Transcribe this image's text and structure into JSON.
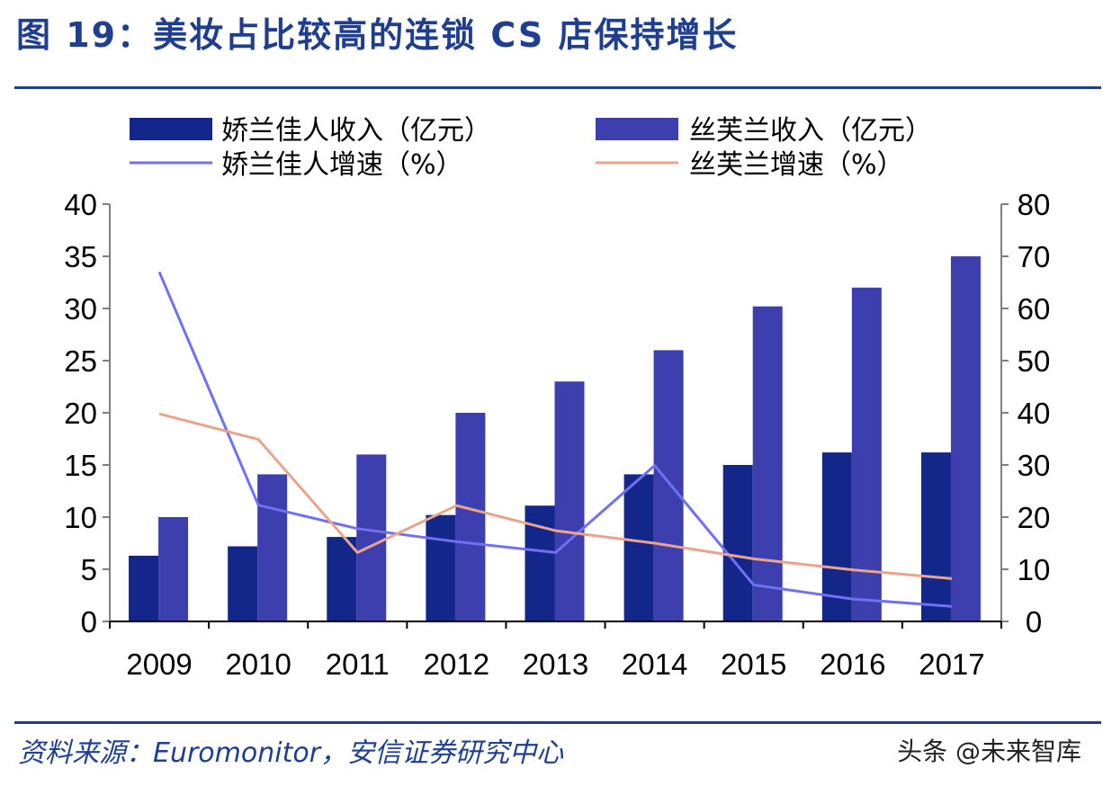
{
  "title": "图 19：美妆占比较高的连锁 CS 店保持增长",
  "source": "资料来源：Euromonitor，安信证券研究中心",
  "watermark": "头条 @未来智库",
  "colors": {
    "jiaolan_bar": "#13278a",
    "sifulan_bar": "#3d3fae",
    "jiaolan_line": "#7070f0",
    "sifulan_line": "#eba48c",
    "title": "#1f3e8f",
    "axis": "#808080"
  },
  "chart_data": {
    "type": "bar",
    "categories": [
      "2009",
      "2010",
      "2011",
      "2012",
      "2013",
      "2014",
      "2015",
      "2016",
      "2017"
    ],
    "series": [
      {
        "name": "娇兰佳人收入（亿元）",
        "kind": "bar",
        "axis": "left",
        "values": [
          6.3,
          7.2,
          8.1,
          10.2,
          11.1,
          14.1,
          15.0,
          16.2,
          16.2
        ]
      },
      {
        "name": "丝芙兰收入（亿元）",
        "kind": "bar",
        "axis": "left",
        "values": [
          10.0,
          14.1,
          16.0,
          20.0,
          23.0,
          26.0,
          30.2,
          32.0,
          35.0
        ]
      },
      {
        "name": "娇兰佳人增速（%）",
        "kind": "line",
        "axis": "right",
        "values": [
          67,
          22.3,
          17.8,
          15.3,
          13.2,
          29.9,
          7.0,
          4.3,
          2.9
        ]
      },
      {
        "name": "丝芙兰增速（%）",
        "kind": "line",
        "axis": "right",
        "values": [
          39.8,
          34.9,
          13.2,
          22.2,
          17.4,
          15.0,
          12.0,
          9.9,
          8.2
        ]
      }
    ],
    "left_axis": {
      "ylim": [
        0,
        40
      ],
      "ticks": [
        "0",
        "5",
        "10",
        "15",
        "20",
        "25",
        "30",
        "35",
        "40"
      ]
    },
    "right_axis": {
      "ylim": [
        0,
        80
      ],
      "ticks": [
        "0",
        "10",
        "20",
        "30",
        "40",
        "50",
        "60",
        "70",
        "80"
      ]
    },
    "legend_position": "top"
  }
}
